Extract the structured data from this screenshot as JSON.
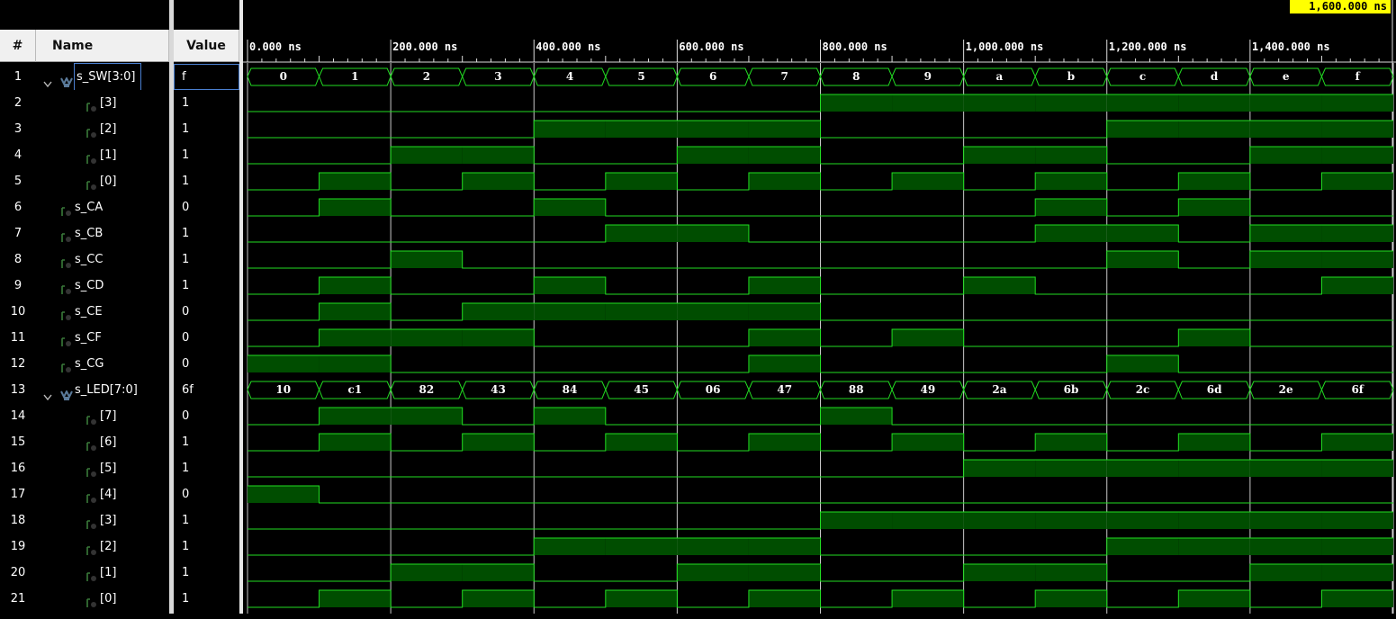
{
  "cursor": {
    "label": "1,600.000 ns"
  },
  "headers": {
    "num": "#",
    "name": "Name",
    "value": "Value"
  },
  "timeline": {
    "ticks": [
      {
        "t": 0,
        "label": "0.000 ns"
      },
      {
        "t": 200,
        "label": "200.000 ns"
      },
      {
        "t": 400,
        "label": "400.000 ns"
      },
      {
        "t": 600,
        "label": "600.000 ns"
      },
      {
        "t": 800,
        "label": "800.000 ns"
      },
      {
        "t": 1000,
        "label": "1,000.000 ns"
      },
      {
        "t": 1200,
        "label": "1,200.000 ns"
      },
      {
        "t": 1400,
        "label": "1,400.000 ns"
      }
    ]
  },
  "signals": [
    {
      "num": "1",
      "name": "s_SW[3:0]",
      "value": "f",
      "type": "bus",
      "expanded": true,
      "values": [
        "0",
        "1",
        "2",
        "3",
        "4",
        "5",
        "6",
        "7",
        "8",
        "9",
        "a",
        "b",
        "c",
        "d",
        "e",
        "f"
      ]
    },
    {
      "num": "2",
      "name": "[3]",
      "value": "1",
      "type": "bit",
      "indent": 2,
      "bits": "0000000011111111"
    },
    {
      "num": "3",
      "name": "[2]",
      "value": "1",
      "type": "bit",
      "indent": 2,
      "bits": "0000111100001111"
    },
    {
      "num": "4",
      "name": "[1]",
      "value": "1",
      "type": "bit",
      "indent": 2,
      "bits": "0011001100110011"
    },
    {
      "num": "5",
      "name": "[0]",
      "value": "1",
      "type": "bit",
      "indent": 2,
      "bits": "0101010101010101"
    },
    {
      "num": "6",
      "name": "s_CA",
      "value": "0",
      "type": "bit",
      "indent": 1,
      "bits": "0100100000010100"
    },
    {
      "num": "7",
      "name": "s_CB",
      "value": "1",
      "type": "bit",
      "indent": 1,
      "bits": "0000011000011011"
    },
    {
      "num": "8",
      "name": "s_CC",
      "value": "1",
      "type": "bit",
      "indent": 1,
      "bits": "0010000000001011"
    },
    {
      "num": "9",
      "name": "s_CD",
      "value": "1",
      "type": "bit",
      "indent": 1,
      "bits": "0100100100100001"
    },
    {
      "num": "10",
      "name": "s_CE",
      "value": "0",
      "type": "bit",
      "indent": 1,
      "bits": "0101111100000000"
    },
    {
      "num": "11",
      "name": "s_CF",
      "value": "0",
      "type": "bit",
      "indent": 1,
      "bits": "0111000101000100"
    },
    {
      "num": "12",
      "name": "s_CG",
      "value": "0",
      "type": "bit",
      "indent": 1,
      "bits": "1100000100001000"
    },
    {
      "num": "13",
      "name": "s_LED[7:0]",
      "value": "6f",
      "type": "bus",
      "expanded": true,
      "values": [
        "10",
        "c1",
        "82",
        "43",
        "84",
        "45",
        "06",
        "47",
        "88",
        "49",
        "2a",
        "6b",
        "2c",
        "6d",
        "2e",
        "6f"
      ]
    },
    {
      "num": "14",
      "name": "[7]",
      "value": "0",
      "type": "bit",
      "indent": 2,
      "bits": "0110100010000000"
    },
    {
      "num": "15",
      "name": "[6]",
      "value": "1",
      "type": "bit",
      "indent": 2,
      "bits": "0101010101010101"
    },
    {
      "num": "16",
      "name": "[5]",
      "value": "1",
      "type": "bit",
      "indent": 2,
      "bits": "0000000000111111"
    },
    {
      "num": "17",
      "name": "[4]",
      "value": "0",
      "type": "bit",
      "indent": 2,
      "bits": "1000000000000000"
    },
    {
      "num": "18",
      "name": "[3]",
      "value": "1",
      "type": "bit",
      "indent": 2,
      "bits": "0000000011111111"
    },
    {
      "num": "19",
      "name": "[2]",
      "value": "1",
      "type": "bit",
      "indent": 2,
      "bits": "0000111100001111"
    },
    {
      "num": "20",
      "name": "[1]",
      "value": "1",
      "type": "bit",
      "indent": 2,
      "bits": "0011001100110011"
    },
    {
      "num": "21",
      "name": "[0]",
      "value": "1",
      "type": "bit",
      "indent": 2,
      "bits": "0101010101010101"
    }
  ],
  "colors": {
    "wave_fill": "#004d00",
    "wave_line": "#22dd22",
    "grid": "#c8c8c8",
    "cursor": "#ffff00",
    "bg": "#000000"
  },
  "icons": {
    "bus": "bus-icon",
    "bit": "bit-signal-icon",
    "expand": "chevron-down-icon"
  }
}
